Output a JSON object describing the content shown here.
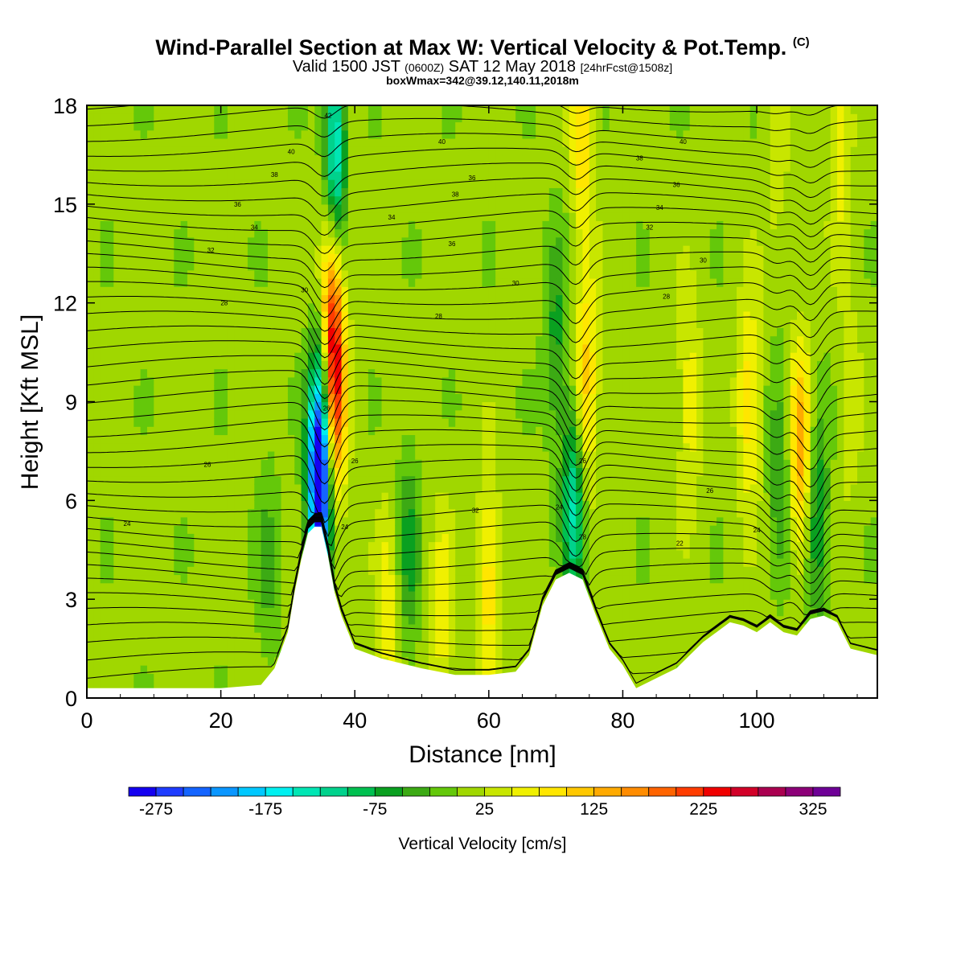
{
  "header": {
    "title_main": "Wind-Parallel Section at Max W: Vertical Velocity & Pot.Temp.",
    "title_mark": "(C)",
    "subtitle_a": "Valid 1500 JST",
    "subtitle_b": "(0600Z)",
    "subtitle_c": "SAT 12 May 2018",
    "subtitle_d": "[24hrFcst@1508z]",
    "info_line": "boxWmax=342@39.12,140.11,2018m"
  },
  "colorbar": {
    "label": "Vertical Velocity [cm/s]",
    "tick_labels": [
      "-275",
      "-175",
      "-75",
      "25",
      "125",
      "225",
      "325"
    ],
    "colors": [
      "#1400f0",
      "#1e3cff",
      "#1464ff",
      "#0a96ff",
      "#00c8ff",
      "#00f0f0",
      "#00e6b4",
      "#00d28c",
      "#00c050",
      "#0aa020",
      "#3caa14",
      "#64c80a",
      "#a0d700",
      "#c8e600",
      "#f0f000",
      "#ffe600",
      "#ffc800",
      "#ffaa00",
      "#ff8c00",
      "#ff6400",
      "#ff3c00",
      "#f00000",
      "#d20028",
      "#aa0050",
      "#8c0078",
      "#6e0096"
    ]
  },
  "chart_data": {
    "type": "heatmap",
    "title": "Wind-Parallel Section at Max W: Vertical Velocity & Pot.Temp.",
    "xlabel": "Distance [nm]",
    "ylabel": "Height [Kft MSL]",
    "xlim": [
      0,
      118
    ],
    "ylim": [
      0,
      18
    ],
    "xticks": [
      0,
      20,
      40,
      60,
      80,
      100
    ],
    "yticks": [
      0,
      3,
      6,
      9,
      12,
      15,
      18
    ],
    "background_value": 15,
    "updraft_cores": [
      {
        "x": 36.8,
        "y": 9.0,
        "value": 250
      },
      {
        "x": 36.5,
        "y": 12.0,
        "value": 175
      },
      {
        "x": 74.5,
        "y": 9.5,
        "value": 125
      },
      {
        "x": 74.0,
        "y": 17.0,
        "value": 100
      },
      {
        "x": 106.5,
        "y": 7.5,
        "value": 150
      },
      {
        "x": 98.8,
        "y": 9.0,
        "value": 100
      },
      {
        "x": 45.0,
        "y": 2.5,
        "value": 75
      },
      {
        "x": 53.0,
        "y": 2.5,
        "value": 75
      },
      {
        "x": 60.0,
        "y": 3.5,
        "value": 100
      },
      {
        "x": 90.0,
        "y": 9.0,
        "value": 75
      },
      {
        "x": 114.0,
        "y": 9.0,
        "value": 50
      },
      {
        "x": 112.5,
        "y": 17.0,
        "value": 75
      },
      {
        "x": 103.0,
        "y": 17.0,
        "value": 50
      },
      {
        "x": 39.0,
        "y": 17.0,
        "value": 50
      }
    ],
    "downdraft_cores": [
      {
        "x": 34.6,
        "y": 6.5,
        "value": -275
      },
      {
        "x": 35.5,
        "y": 8.5,
        "value": -150
      },
      {
        "x": 37.2,
        "y": 16.5,
        "value": -175
      },
      {
        "x": 72.7,
        "y": 6.0,
        "value": -125
      },
      {
        "x": 109.0,
        "y": 5.5,
        "value": -75
      },
      {
        "x": 103.5,
        "y": 7.0,
        "value": -50
      },
      {
        "x": 70.0,
        "y": 11.0,
        "value": -50
      },
      {
        "x": 48.0,
        "y": 4.5,
        "value": -50
      },
      {
        "x": 27.0,
        "y": 4.0,
        "value": -25
      }
    ],
    "terrain_kft": {
      "x": [
        0,
        8,
        14,
        20,
        26,
        28,
        30,
        31,
        32,
        33,
        34,
        35,
        36,
        37,
        38,
        40,
        44,
        50,
        55,
        60,
        64,
        66,
        68,
        70,
        72,
        74,
        76,
        78,
        80,
        82,
        84,
        86,
        88,
        90,
        92,
        94,
        96,
        98,
        100,
        102,
        104,
        106,
        108,
        110,
        112,
        114,
        118
      ],
      "y": [
        0.3,
        0.3,
        0.3,
        0.3,
        0.4,
        0.9,
        2.0,
        3.2,
        4.2,
        5.0,
        5.2,
        5.2,
        4.3,
        3.2,
        2.5,
        1.5,
        1.2,
        0.9,
        0.7,
        0.7,
        0.8,
        1.3,
        2.8,
        3.6,
        3.8,
        3.6,
        2.5,
        1.5,
        1.0,
        0.3,
        0.5,
        0.7,
        0.9,
        1.3,
        1.7,
        2.0,
        2.3,
        2.2,
        2.0,
        2.3,
        2.0,
        1.9,
        2.4,
        2.5,
        2.3,
        1.5,
        1.3
      ]
    },
    "theta_contours": {
      "labels": [
        {
          "text": "24",
          "x": 6,
          "y": 5.3
        },
        {
          "text": "26",
          "x": 18,
          "y": 7.1
        },
        {
          "text": "28",
          "x": 20.5,
          "y": 12.0
        },
        {
          "text": "32",
          "x": 18.5,
          "y": 13.6
        },
        {
          "text": "34",
          "x": 25,
          "y": 14.3
        },
        {
          "text": "36",
          "x": 22.5,
          "y": 15.0
        },
        {
          "text": "38",
          "x": 28,
          "y": 15.9
        },
        {
          "text": "40",
          "x": 30.5,
          "y": 16.6
        },
        {
          "text": "30",
          "x": 32.5,
          "y": 12.4
        },
        {
          "text": "42",
          "x": 36,
          "y": 17.7
        },
        {
          "text": "26",
          "x": 35.8,
          "y": 8.8
        },
        {
          "text": "26",
          "x": 40,
          "y": 7.2
        },
        {
          "text": "24",
          "x": 38.5,
          "y": 5.2
        },
        {
          "text": "34",
          "x": 45.5,
          "y": 14.6
        },
        {
          "text": "28",
          "x": 52.5,
          "y": 11.6
        },
        {
          "text": "36",
          "x": 54.5,
          "y": 13.8
        },
        {
          "text": "38",
          "x": 55,
          "y": 15.3
        },
        {
          "text": "36",
          "x": 57.5,
          "y": 15.8
        },
        {
          "text": "40",
          "x": 53,
          "y": 16.9
        },
        {
          "text": "30",
          "x": 64,
          "y": 12.6
        },
        {
          "text": "32",
          "x": 58,
          "y": 5.7
        },
        {
          "text": "24",
          "x": 70.5,
          "y": 5.8
        },
        {
          "text": "26",
          "x": 74,
          "y": 7.2
        },
        {
          "text": "28",
          "x": 74,
          "y": 4.9
        },
        {
          "text": "40",
          "x": 89,
          "y": 16.9
        },
        {
          "text": "38",
          "x": 82.5,
          "y": 16.4
        },
        {
          "text": "36",
          "x": 88,
          "y": 15.6
        },
        {
          "text": "34",
          "x": 85.5,
          "y": 14.9
        },
        {
          "text": "32",
          "x": 84,
          "y": 14.3
        },
        {
          "text": "30",
          "x": 92,
          "y": 13.3
        },
        {
          "text": "28",
          "x": 86.5,
          "y": 12.2
        },
        {
          "text": "26",
          "x": 93,
          "y": 6.3
        },
        {
          "text": "24",
          "x": 100,
          "y": 5.1
        },
        {
          "text": "22",
          "x": 88.5,
          "y": 4.7
        }
      ]
    },
    "colorbar_range": [
      -300,
      350
    ],
    "colorbar_step": 25
  }
}
